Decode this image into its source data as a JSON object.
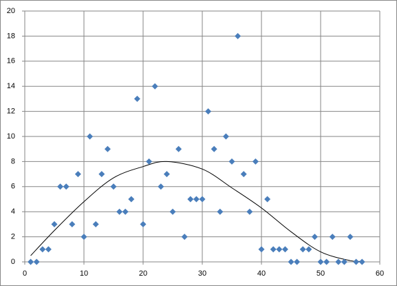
{
  "chart_data": {
    "type": "scatter",
    "x": [
      1,
      2,
      3,
      4,
      5,
      6,
      7,
      8,
      9,
      10,
      11,
      12,
      13,
      14,
      15,
      16,
      17,
      18,
      19,
      20,
      21,
      22,
      23,
      24,
      25,
      26,
      27,
      28,
      29,
      30,
      31,
      32,
      33,
      34,
      35,
      36,
      37,
      38,
      39,
      40,
      41,
      42,
      43,
      44,
      45,
      46,
      47,
      48,
      49,
      50,
      51,
      52,
      53,
      54,
      55,
      56,
      57
    ],
    "values": [
      0,
      0,
      1,
      1,
      3,
      6,
      6,
      3,
      7,
      2,
      10,
      3,
      7,
      9,
      6,
      4,
      4,
      5,
      13,
      3,
      8,
      14,
      6,
      7,
      4,
      9,
      2,
      5,
      5,
      5,
      12,
      9,
      4,
      10,
      8,
      18,
      7,
      4,
      8,
      1,
      5,
      1,
      1,
      1,
      0,
      0,
      1,
      1,
      2,
      0,
      0,
      2,
      0,
      0,
      2,
      0,
      0
    ],
    "color": "#4a7ebb",
    "trendline": {
      "x": [
        1,
        5,
        10,
        15,
        20,
        24,
        30,
        35,
        40,
        45,
        50,
        55,
        57
      ],
      "values": [
        0.5,
        2.5,
        4.8,
        6.7,
        7.6,
        8,
        7.4,
        5.9,
        4.3,
        2.4,
        0.8,
        0.1,
        0.05
      ],
      "color": "#000000"
    },
    "xlim": [
      0,
      60
    ],
    "xticks": [
      0,
      10,
      20,
      30,
      40,
      50,
      60
    ],
    "ylim": [
      0,
      20
    ],
    "yticks": [
      0,
      2,
      4,
      6,
      8,
      10,
      12,
      14,
      16,
      18,
      20
    ],
    "grid": true
  }
}
